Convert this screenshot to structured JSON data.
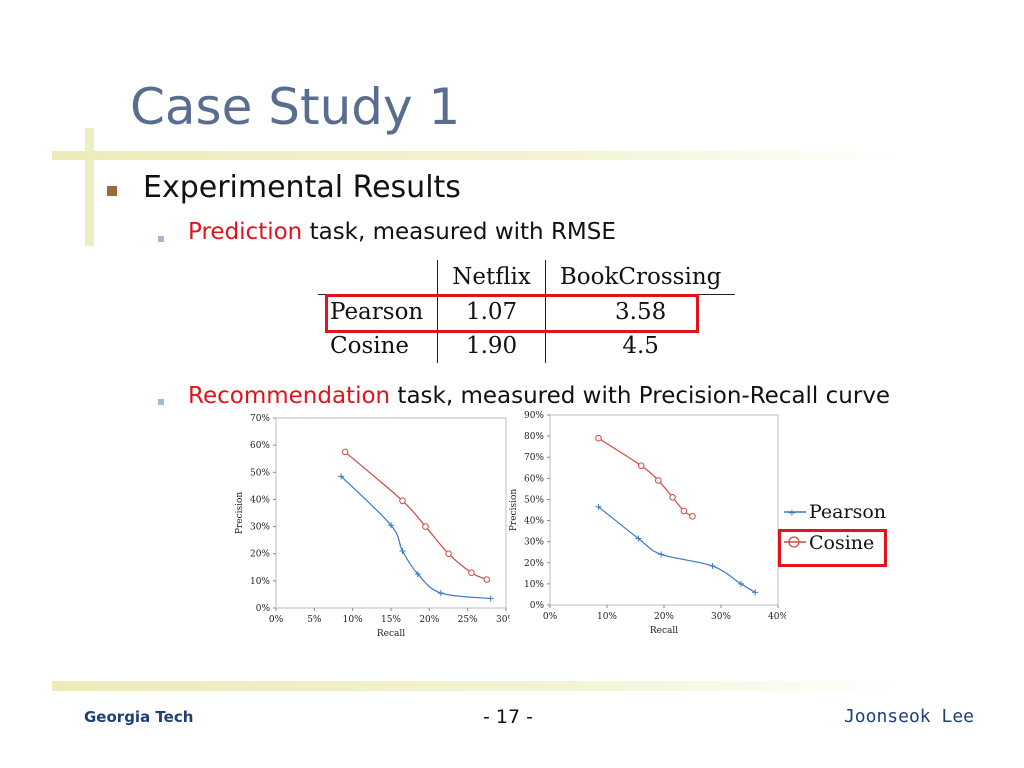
{
  "slide": {
    "title": "Case Study 1",
    "bullet1": "Experimental Results",
    "pred_red": "Prediction",
    "pred_rest": " task, measured with RMSE",
    "rec_red": "Recommendation",
    "rec_rest": " task, measured with Precision-Recall curve"
  },
  "footer": {
    "left": "Georgia Tech",
    "center": "- 17 -",
    "right": "Joonseok Lee"
  },
  "table": {
    "headers": [
      "Netflix",
      "BookCrossing"
    ],
    "rows": [
      {
        "name": "Pearson",
        "values": [
          "1.07",
          "3.58"
        ]
      },
      {
        "name": "Cosine",
        "values": [
          "1.90",
          "4.5"
        ]
      }
    ]
  },
  "colors": {
    "pearson": "#3a78c2",
    "cosine": "#d24a43",
    "highlight": "#e0141a"
  },
  "legend": {
    "pearson": "Pearson",
    "cosine": "Cosine"
  },
  "chart_data": [
    {
      "type": "line",
      "xlabel": "Recall",
      "ylabel": "Precision",
      "xlim": [
        0,
        30
      ],
      "ylim": [
        0,
        70
      ],
      "xticks": [
        "0%",
        "5%",
        "10%",
        "15%",
        "20%",
        "25%",
        "30%"
      ],
      "yticks": [
        "0%",
        "10%",
        "20%",
        "30%",
        "40%",
        "50%",
        "60%",
        "70%"
      ],
      "series": [
        {
          "name": "Pearson",
          "x": [
            8.5,
            15,
            16.5,
            18.5,
            21.5,
            28
          ],
          "y": [
            48.5,
            30.5,
            21,
            12.5,
            5.5,
            3.5
          ]
        },
        {
          "name": "Cosine",
          "x": [
            9,
            16.5,
            19.5,
            22.5,
            25.5,
            27.5
          ],
          "y": [
            57.5,
            39.5,
            30,
            20,
            13,
            10.5
          ]
        }
      ]
    },
    {
      "type": "line",
      "xlabel": "Recall",
      "ylabel": "Precision",
      "xlim": [
        0,
        40
      ],
      "ylim": [
        0,
        90
      ],
      "xticks": [
        "0%",
        "10%",
        "20%",
        "30%",
        "40%"
      ],
      "yticks": [
        "0%",
        "10%",
        "20%",
        "30%",
        "40%",
        "50%",
        "60%",
        "70%",
        "80%",
        "90%"
      ],
      "series": [
        {
          "name": "Pearson",
          "x": [
            8.5,
            15.5,
            19.5,
            28.5,
            33.5,
            36
          ],
          "y": [
            46.5,
            31.5,
            24,
            18.5,
            10,
            6
          ]
        },
        {
          "name": "Cosine",
          "x": [
            8.5,
            16,
            19,
            21.5,
            23.5,
            25
          ],
          "y": [
            79,
            66,
            59,
            51,
            44.5,
            42
          ]
        }
      ]
    }
  ]
}
